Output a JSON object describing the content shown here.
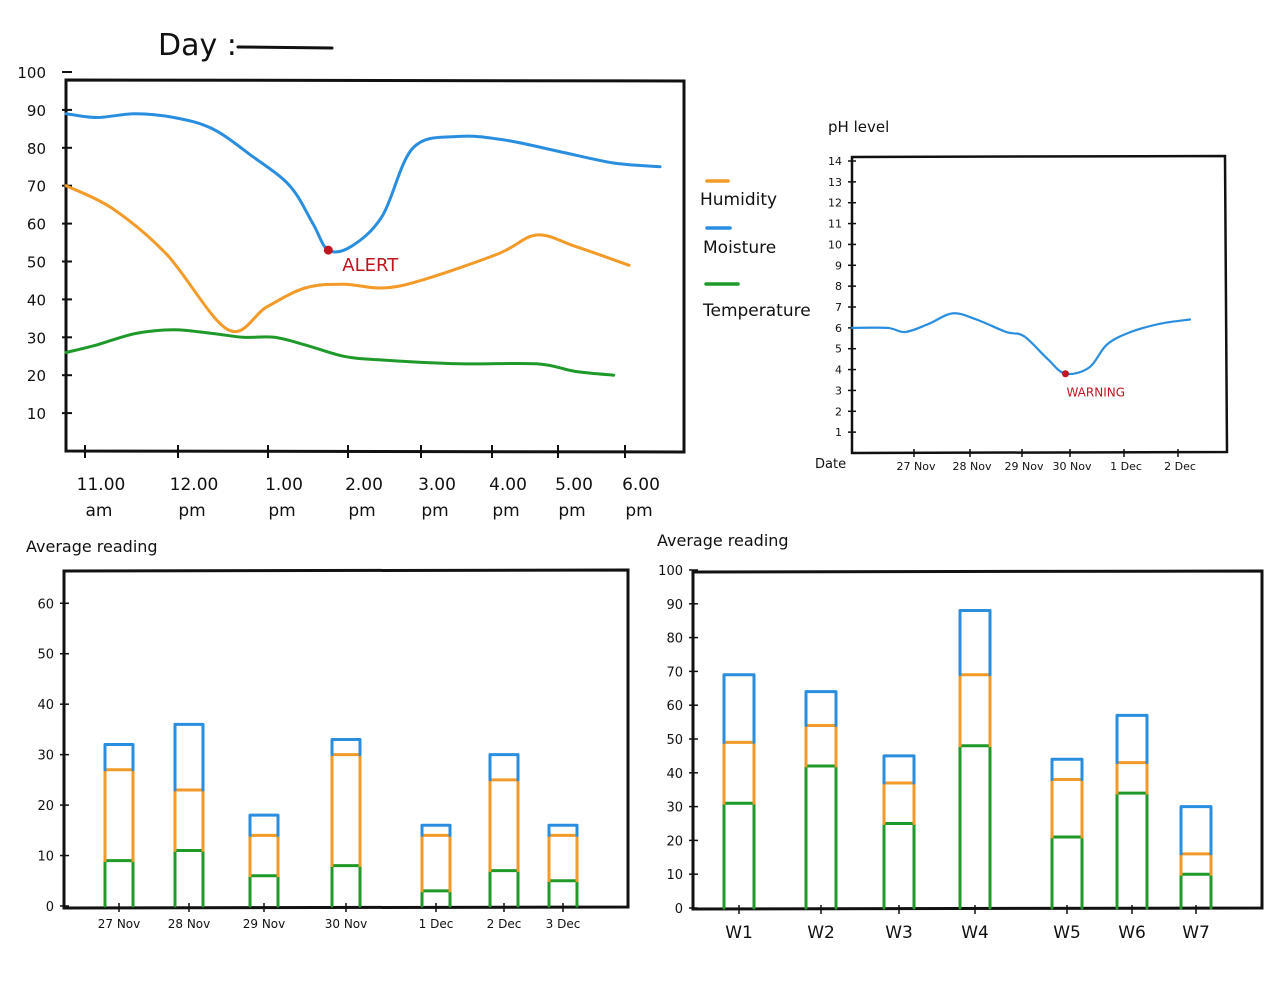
{
  "header": {
    "day_label": "Day :"
  },
  "colors": {
    "humidity": "#f39a28",
    "moisture": "#2a8ee0",
    "temperature": "#1f9a2a",
    "alert": "#c0141e",
    "frame": "#111111"
  },
  "chart_data": [
    {
      "id": "line-chart",
      "type": "line",
      "title": "",
      "x_ticks_top": [
        "11.00",
        "12.00",
        "1.00",
        "2.00",
        "3.00",
        "4.00",
        "5.00",
        "6.00"
      ],
      "x_ticks_bottom": [
        "am",
        "pm",
        "pm",
        "pm",
        "pm",
        "pm",
        "pm",
        "pm"
      ],
      "y_ticks": [
        10,
        20,
        30,
        40,
        50,
        60,
        70,
        80,
        90,
        100
      ],
      "ylim": [
        0,
        100
      ],
      "xlim": [
        10.9,
        18.6
      ],
      "legend_position": "right",
      "series": [
        {
          "name": "Moisture",
          "color_key": "moisture",
          "x": [
            10.9,
            11.3,
            11.8,
            12.3,
            12.8,
            13.3,
            13.8,
            14.1,
            14.3,
            14.6,
            15.0,
            15.4,
            16.0,
            16.6,
            17.3,
            18.0,
            18.6
          ],
          "y": [
            89,
            88,
            89,
            88,
            85,
            78,
            70,
            60,
            53,
            54,
            62,
            80,
            83,
            82,
            79,
            76,
            75
          ]
        },
        {
          "name": "Humidity",
          "color_key": "humidity",
          "x": [
            10.9,
            11.5,
            12.2,
            13.0,
            13.5,
            14.0,
            14.5,
            15.0,
            15.5,
            16.5,
            17.0,
            17.5,
            18.2
          ],
          "y": [
            70,
            64,
            52,
            32,
            38,
            43,
            44,
            43,
            45,
            52,
            57,
            54,
            49
          ]
        },
        {
          "name": "Temperature",
          "color_key": "temperature",
          "x": [
            10.9,
            11.3,
            11.8,
            12.3,
            12.8,
            13.2,
            13.6,
            14.0,
            14.5,
            15.0,
            16.0,
            17.0,
            17.5,
            18.0
          ],
          "y": [
            26,
            28,
            31,
            32,
            31,
            30,
            30,
            28,
            25,
            24,
            23,
            23,
            21,
            20
          ]
        }
      ],
      "annotations": [
        {
          "text": "ALERT",
          "series": "Moisture",
          "x": 14.3,
          "y": 53
        }
      ]
    },
    {
      "id": "ph-chart",
      "type": "line",
      "title": "pH level",
      "xlabel": "Date",
      "x_ticks": [
        "27 Nov",
        "28 Nov",
        "29 Nov",
        "30 Nov",
        "1 Dec",
        "2 Dec"
      ],
      "y_ticks": [
        1,
        2,
        3,
        4,
        5,
        6,
        7,
        8,
        9,
        10,
        11,
        12,
        13,
        14
      ],
      "ylim": [
        0,
        14
      ],
      "xlim": [
        0,
        6.5
      ],
      "series": [
        {
          "name": "pH",
          "color_key": "moisture",
          "x": [
            0,
            0.6,
            0.9,
            1.3,
            1.7,
            2.1,
            2.6,
            2.9,
            3.3,
            3.6,
            4.0,
            4.3,
            4.7,
            5.2,
            5.7
          ],
          "y": [
            6.0,
            6.0,
            5.8,
            6.2,
            6.7,
            6.4,
            5.8,
            5.6,
            4.5,
            3.8,
            4.1,
            5.2,
            5.8,
            6.2,
            6.4
          ]
        }
      ],
      "annotations": [
        {
          "text": "WARNING",
          "x": 3.6,
          "y": 3.8
        }
      ]
    },
    {
      "id": "daily-bar-chart",
      "type": "bar",
      "title": "Average reading",
      "categories": [
        "27 Nov",
        "28 Nov",
        "29 Nov",
        "30 Nov",
        "1 Dec",
        "2 Dec",
        "3 Dec"
      ],
      "y_ticks": [
        0,
        10,
        20,
        30,
        40,
        50,
        60
      ],
      "ylim": [
        0,
        66
      ],
      "stacked": true,
      "series": [
        {
          "name": "Temperature",
          "color_key": "temperature",
          "values": [
            9,
            11,
            6,
            8,
            3,
            7,
            5
          ]
        },
        {
          "name": "Humidity",
          "color_key": "humidity",
          "values": [
            18,
            12,
            8,
            22,
            11,
            18,
            9
          ]
        },
        {
          "name": "Moisture",
          "color_key": "moisture",
          "values": [
            5,
            13,
            4,
            3,
            2,
            5,
            2
          ]
        }
      ]
    },
    {
      "id": "weekly-bar-chart",
      "type": "bar",
      "title": "Average reading",
      "categories": [
        "W1",
        "W2",
        "W3",
        "W4",
        "W5",
        "W6",
        "W7"
      ],
      "y_ticks": [
        0,
        10,
        20,
        30,
        40,
        50,
        60,
        70,
        80,
        90,
        100
      ],
      "ylim": [
        0,
        100
      ],
      "stacked": true,
      "series": [
        {
          "name": "Temperature",
          "color_key": "temperature",
          "values": [
            31,
            42,
            25,
            48,
            21,
            34,
            10
          ]
        },
        {
          "name": "Humidity",
          "color_key": "humidity",
          "values": [
            18,
            12,
            12,
            21,
            17,
            9,
            6
          ]
        },
        {
          "name": "Moisture",
          "color_key": "moisture",
          "values": [
            20,
            10,
            8,
            19,
            6,
            14,
            14
          ]
        }
      ]
    }
  ],
  "legend": [
    {
      "label": "Humidity",
      "color_key": "humidity"
    },
    {
      "label": "Moisture",
      "color_key": "moisture"
    },
    {
      "label": "Temperature",
      "color_key": "temperature"
    }
  ]
}
